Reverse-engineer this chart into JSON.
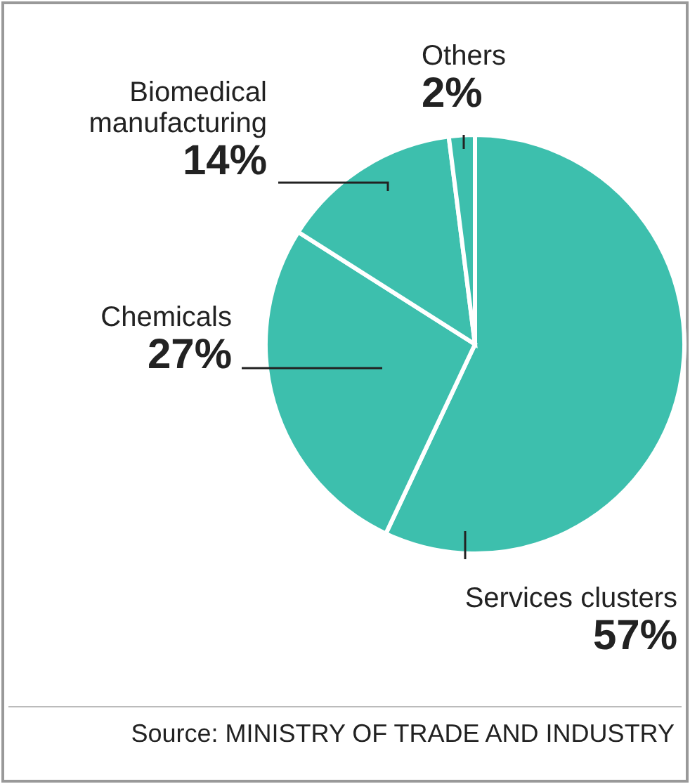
{
  "chart_data": {
    "type": "pie",
    "categories": [
      "Services clusters",
      "Chemicals",
      "Biomedical manufacturing",
      "Others"
    ],
    "values": [
      57,
      27,
      14,
      2
    ],
    "colors": [
      "#3dbfad",
      "#3dbfad",
      "#3dbfad",
      "#3dbfad"
    ],
    "value_labels": [
      "57%",
      "27%",
      "14%",
      "2%"
    ],
    "annotations": [
      "Source: MINISTRY OF TRADE AND INDUSTRY"
    ]
  }
}
